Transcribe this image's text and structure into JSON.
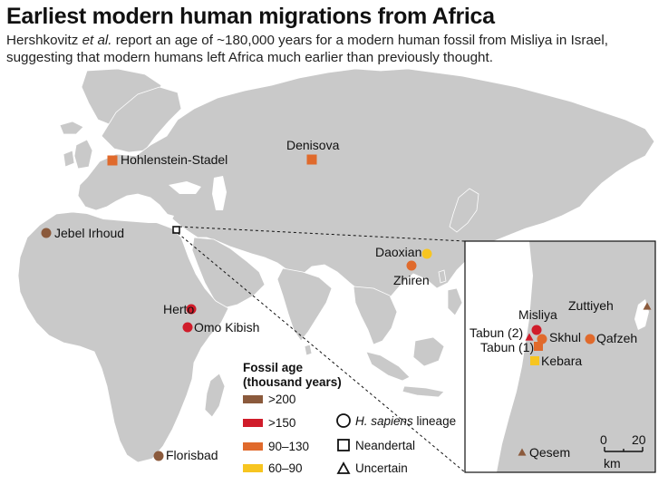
{
  "title": "Earliest modern human migrations from Africa",
  "subtitle": {
    "part1": "Hershkovitz ",
    "italic": "et al.",
    "part2": " report an age of ~180,000 years for a modern human fossil from Misliya in Israel, suggesting that modern humans left Africa much earlier than previously thought."
  },
  "colors": {
    "land": "#c9c9c9",
    "water": "#ffffff",
    "age_200": "#8b5a3c",
    "age_150": "#d01c2a",
    "age_90_130": "#e06a2c",
    "age_60_90": "#f7c520"
  },
  "sites": [
    {
      "name": "Hohlenstein-Stadel",
      "shape": "square",
      "age_class": "90_130"
    },
    {
      "name": "Denisova",
      "shape": "square",
      "age_class": "90_130"
    },
    {
      "name": "Jebel Irhoud",
      "shape": "circle",
      "age_class": "200"
    },
    {
      "name": "Daoxian",
      "shape": "circle",
      "age_class": "60_90"
    },
    {
      "name": "Zhiren",
      "shape": "circle",
      "age_class": "90_130"
    },
    {
      "name": "Herto",
      "shape": "circle",
      "age_class": "150"
    },
    {
      "name": "Omo Kibish",
      "shape": "circle",
      "age_class": "150"
    },
    {
      "name": "Florisbad",
      "shape": "circle",
      "age_class": "200"
    }
  ],
  "inset": {
    "sites": [
      {
        "name": "Zuttiyeh",
        "shape": "triangle",
        "age_class": "200"
      },
      {
        "name": "Misliya",
        "shape": "circle",
        "age_class": "150"
      },
      {
        "name": "Tabun (2)",
        "shape": "triangle",
        "age_class": "150"
      },
      {
        "name": "Skhul",
        "shape": "circle",
        "age_class": "90_130"
      },
      {
        "name": "Qafzeh",
        "shape": "circle",
        "age_class": "90_130"
      },
      {
        "name": "Tabun (1)",
        "shape": "square",
        "age_class": "90_130"
      },
      {
        "name": "Kebara",
        "shape": "square",
        "age_class": "60_90"
      },
      {
        "name": "Qesem",
        "shape": "triangle",
        "age_class": "200"
      }
    ],
    "scale": {
      "tick_start": "0",
      "tick_end": "20",
      "unit": "km"
    }
  },
  "legend": {
    "title_line1": "Fossil age",
    "title_line2": "(thousand years)",
    "age_items": [
      {
        "label": ">200",
        "age_class": "200"
      },
      {
        "label": ">150",
        "age_class": "150"
      },
      {
        "label": "90–130",
        "age_class": "90_130"
      },
      {
        "label": "60–90",
        "age_class": "60_90"
      }
    ],
    "shape_items": [
      {
        "italic": "H. sapiens",
        "label": " lineage",
        "shape": "circle"
      },
      {
        "italic": "",
        "label": "Neandertal",
        "shape": "square"
      },
      {
        "italic": "",
        "label": "Uncertain",
        "shape": "triangle"
      }
    ]
  }
}
